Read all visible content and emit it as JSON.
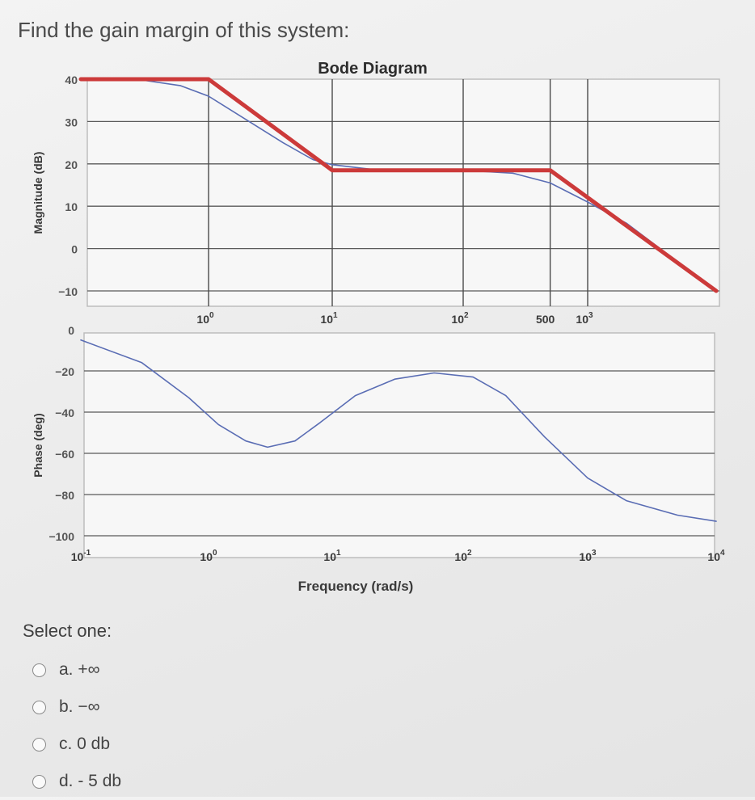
{
  "question": {
    "text": "Find the gain margin of this system:"
  },
  "chart_data": [
    {
      "type": "line",
      "title": "Bode Diagram",
      "xscale": "log",
      "xlim": [
        0.1,
        10000
      ],
      "ylabel": "Magnitude (dB)",
      "ylim": [
        -10,
        40
      ],
      "yticks": [
        40,
        30,
        20,
        10,
        0,
        -10
      ],
      "xtick_labels": [
        {
          "x": 1,
          "base": "10",
          "exp": "0"
        },
        {
          "x": 10,
          "base": "10",
          "exp": "1"
        },
        {
          "x": 100,
          "base": "10",
          "exp": "2"
        },
        {
          "x": 500,
          "base": "500",
          "exp": ""
        },
        {
          "x": 1000,
          "base": "10",
          "exp": "3"
        }
      ],
      "series": [
        {
          "role": "asymptotic",
          "color": "#cc3a3a",
          "points": [
            [
              0.1,
              40
            ],
            [
              1,
              40
            ],
            [
              10,
              18.5
            ],
            [
              500,
              18.5
            ],
            [
              10000,
              -10
            ]
          ]
        },
        {
          "role": "actual",
          "color": "#5a6db4",
          "points": [
            [
              0.1,
              40
            ],
            [
              0.3,
              39.8
            ],
            [
              0.6,
              38.5
            ],
            [
              1,
              36
            ],
            [
              2,
              30.5
            ],
            [
              4,
              25
            ],
            [
              7,
              21
            ],
            [
              10,
              19.8
            ],
            [
              20,
              18.7
            ],
            [
              100,
              18.5
            ],
            [
              250,
              17.8
            ],
            [
              500,
              15.5
            ],
            [
              1000,
              11
            ],
            [
              2000,
              6
            ],
            [
              10000,
              -10
            ]
          ]
        }
      ]
    },
    {
      "type": "line",
      "xscale": "log",
      "xlim": [
        0.1,
        10000
      ],
      "ylabel": "Phase (deg)",
      "xlabel": "Frequency  (rad/s)",
      "ylim": [
        -100,
        0
      ],
      "yticks": [
        0,
        -20,
        -40,
        -60,
        -80,
        -100
      ],
      "xtick_labels": [
        {
          "x": 0.1,
          "base": "10",
          "exp": "-1"
        },
        {
          "x": 1,
          "base": "10",
          "exp": "0"
        },
        {
          "x": 10,
          "base": "10",
          "exp": "1"
        },
        {
          "x": 100,
          "base": "10",
          "exp": "2"
        },
        {
          "x": 1000,
          "base": "10",
          "exp": "3"
        },
        {
          "x": 10000,
          "base": "10",
          "exp": "4"
        }
      ],
      "series": [
        {
          "role": "actual",
          "color": "#5a6db4",
          "points": [
            [
              0.1,
              -5
            ],
            [
              0.3,
              -16
            ],
            [
              0.7,
              -33
            ],
            [
              1.2,
              -46
            ],
            [
              2,
              -54
            ],
            [
              3,
              -57
            ],
            [
              5,
              -54
            ],
            [
              8,
              -45
            ],
            [
              15,
              -32
            ],
            [
              30,
              -24
            ],
            [
              60,
              -21
            ],
            [
              120,
              -23
            ],
            [
              220,
              -32
            ],
            [
              450,
              -52
            ],
            [
              1000,
              -72
            ],
            [
              2000,
              -83
            ],
            [
              5000,
              -90
            ],
            [
              10000,
              -93
            ]
          ]
        }
      ]
    }
  ],
  "answers": {
    "prompt": "Select one:",
    "options": [
      {
        "label": "a. +∞"
      },
      {
        "label": "b. −∞"
      },
      {
        "label": "c. 0 db"
      },
      {
        "label": "d. - 5 db"
      }
    ]
  }
}
